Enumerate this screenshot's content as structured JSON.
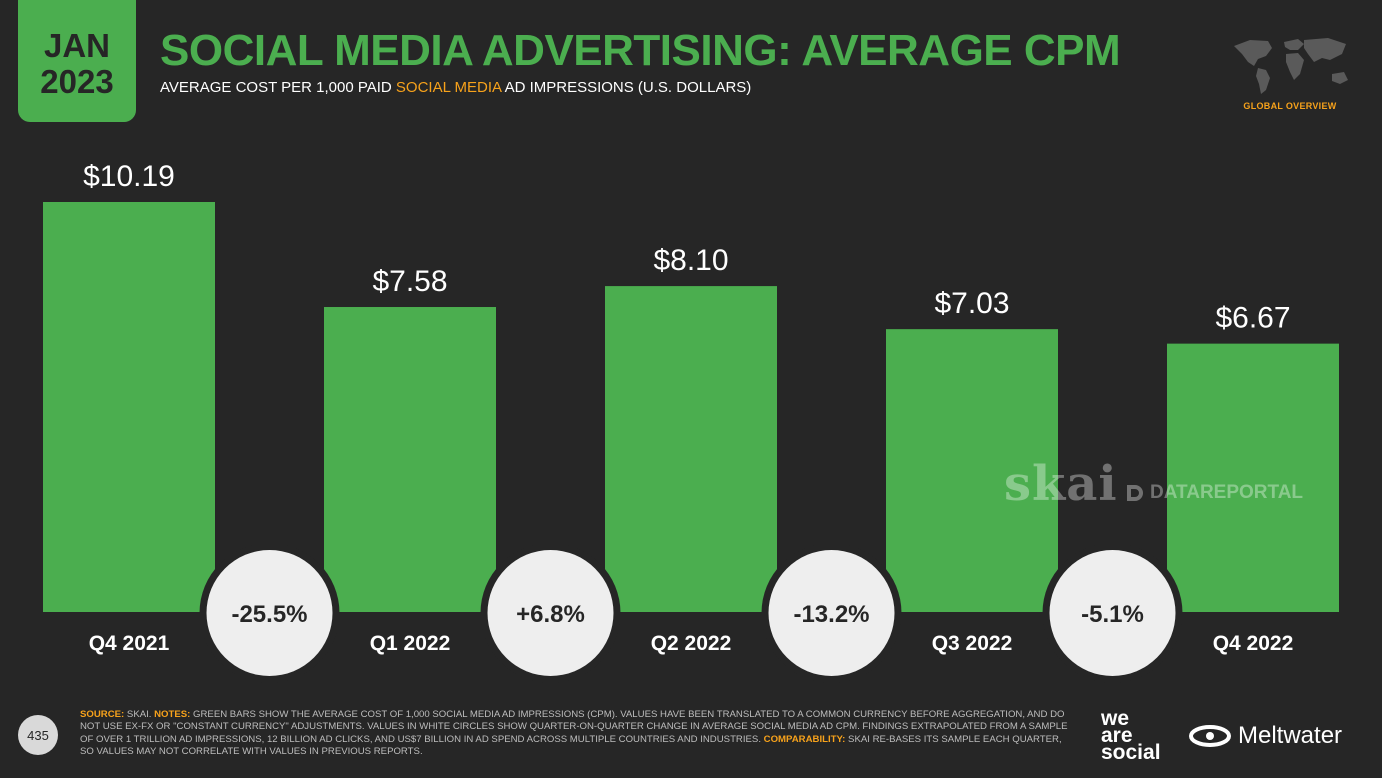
{
  "header": {
    "date_month": "JAN",
    "date_year": "2023",
    "title": "SOCIAL MEDIA ADVERTISING: AVERAGE CPM",
    "subtitle_pre": "AVERAGE COST PER 1,000 PAID ",
    "subtitle_highlight": "SOCIAL MEDIA",
    "subtitle_post": " AD IMPRESSIONS (U.S. DOLLARS)",
    "badge": "GLOBAL OVERVIEW"
  },
  "chart_data": {
    "type": "bar",
    "title": "SOCIAL MEDIA ADVERTISING: AVERAGE CPM",
    "ylabel": "Average cost per 1,000 paid social media ad impressions (U.S. dollars)",
    "categories": [
      "Q4 2021",
      "Q1 2022",
      "Q2 2022",
      "Q3 2022",
      "Q4 2022"
    ],
    "values": [
      10.19,
      7.58,
      8.1,
      7.03,
      6.67
    ],
    "value_labels": [
      "$10.19",
      "$7.58",
      "$8.10",
      "$7.03",
      "$6.67"
    ],
    "changes": [
      "-25.5%",
      "+6.8%",
      "-13.2%",
      "-5.1%"
    ],
    "ylim": [
      0,
      10.19
    ],
    "grid": false,
    "bar_color": "#4bae4f"
  },
  "watermarks": {
    "skai": "skai",
    "datareportal": "DATAREPORTAL"
  },
  "footer": {
    "page_number": "435",
    "source_key": "SOURCE:",
    "source_text": " SKAI. ",
    "notes_key": "NOTES:",
    "notes_text": " GREEN BARS SHOW THE AVERAGE COST OF 1,000 SOCIAL MEDIA AD IMPRESSIONS (CPM). VALUES HAVE BEEN TRANSLATED TO A COMMON CURRENCY BEFORE AGGREGATION, AND DO NOT USE EX-FX OR \"CONSTANT CURRENCY\" ADJUSTMENTS. VALUES IN WHITE CIRCLES SHOW QUARTER-ON-QUARTER CHANGE IN AVERAGE SOCIAL MEDIA AD CPM. FINDINGS EXTRAPOLATED FROM A SAMPLE OF OVER 1 TRILLION AD IMPRESSIONS, 12 BILLION AD CLICKS, AND US$7 BILLION IN AD SPEND ACROSS MULTIPLE COUNTRIES AND INDUSTRIES. ",
    "comparability_key": "COMPARABILITY:",
    "comparability_text": " SKAI RE-BASES ITS SAMPLE EACH QUARTER, SO VALUES MAY NOT CORRELATE WITH VALUES IN PREVIOUS REPORTS.",
    "logo_was_1": "we",
    "logo_was_2": "are",
    "logo_was_3": "social",
    "logo_meltwater": "Meltwater"
  },
  "colors": {
    "background": "#262626",
    "accent": "#4bae4f",
    "highlight": "#f7a21b",
    "circle": "#eeeeee"
  }
}
